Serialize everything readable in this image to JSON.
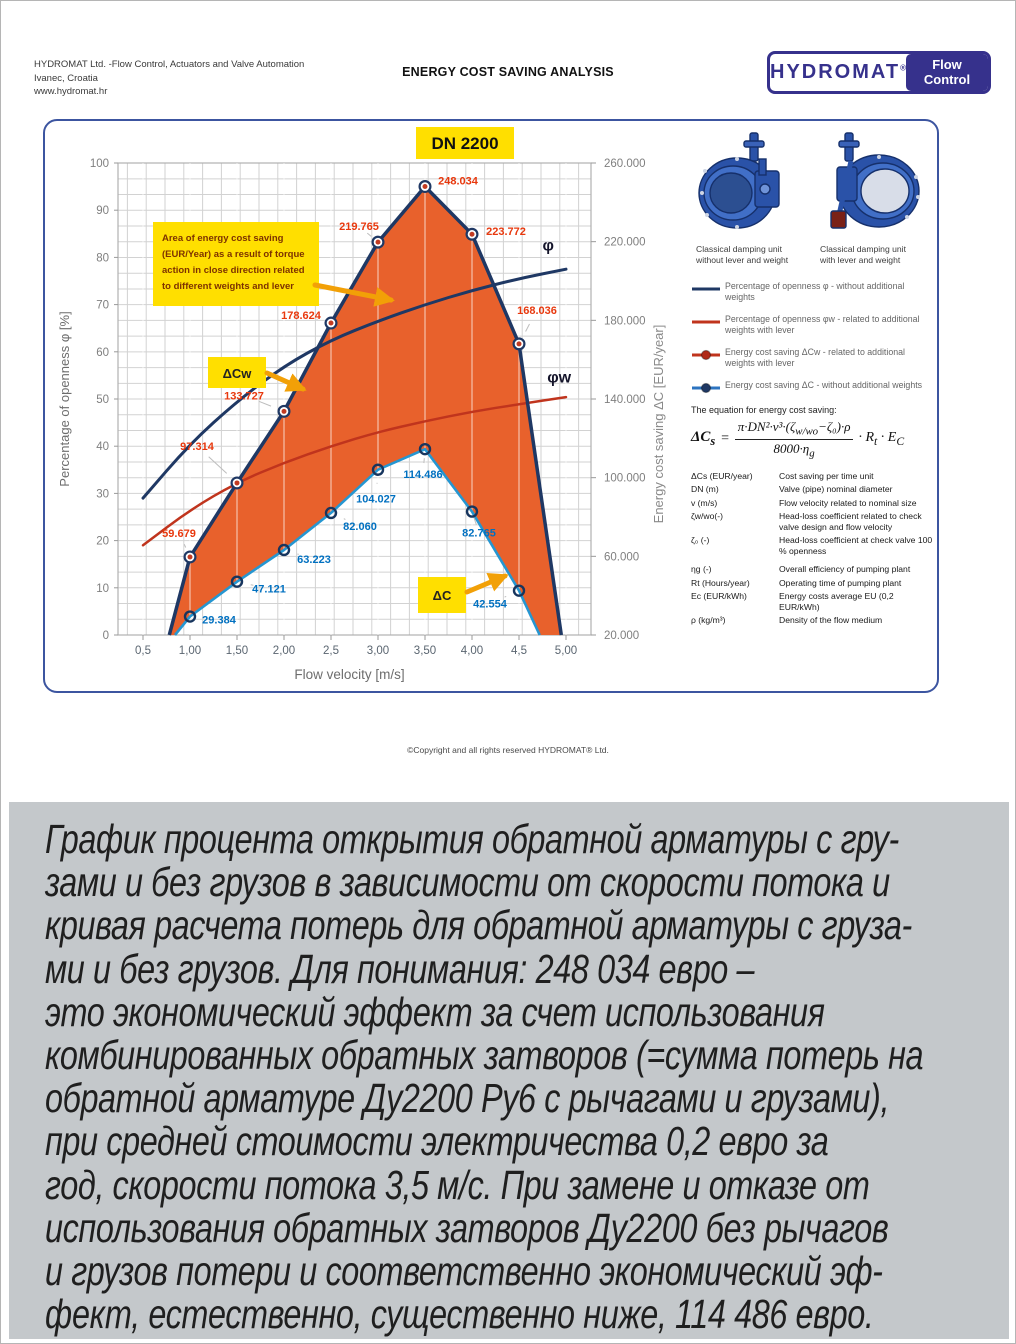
{
  "header": {
    "company_lines": [
      "HYDROMAT Ltd. -Flow Control, Actuators and Valve Automation",
      "Ivanec, Croatia",
      "www.hydromat.hr"
    ],
    "title": "ENERGY COST SAVING ANALYSIS",
    "logo": {
      "brand": "HYDROMAT",
      "registered": "®",
      "badge_line1": "Flow",
      "badge_line2": "Control"
    }
  },
  "panel": {
    "valves": [
      {
        "caption": "Classical damping unit without lever and weight"
      },
      {
        "caption": "Classical damping unit with lever and weight"
      }
    ],
    "legend": [
      {
        "label": "Percentage of openness φ - without additional weights",
        "color": "#1f3864",
        "marker": false,
        "marker_color": ""
      },
      {
        "label": "Percentage of openness φw - related to additional weights with lever",
        "color": "#c0341d",
        "marker": false,
        "marker_color": ""
      },
      {
        "label": "Energy cost saving ΔCw - related to additional weights with lever",
        "color": "#c0341d",
        "marker": true,
        "marker_color": "#b02a18"
      },
      {
        "label": "Energy cost saving ΔC - without additional weights",
        "color": "#2d74c0",
        "marker": true,
        "marker_color": "#1f3864"
      }
    ],
    "equation": {
      "intro": "The equation for energy cost saving:",
      "lhs": "ΔC",
      "lhs_sub": "s",
      "sign": "=",
      "num_a": "π·DN²·v³·(ζ",
      "num_sub": "w/wo",
      "num_b": "−ζ₀)·ρ",
      "den_a": "8000·η",
      "den_sub": "g",
      "tail_a": "· R",
      "tail_a_sub": "t",
      "tail_b": " · E",
      "tail_b_sub": "C"
    },
    "definitions": [
      {
        "term": "ΔCs (EUR/year)",
        "def": "Cost saving per time unit"
      },
      {
        "term": "DN (m)",
        "def": "Valve (pipe) nominal diameter"
      },
      {
        "term": "v (m/s)",
        "def": "Flow velocity related to nominal size"
      },
      {
        "term": "ζw/wo(-)",
        "def": "Head-loss coefficient related to check valve design and flow velocity"
      },
      {
        "term": "ζ₀ (-)",
        "def": "Head-loss coefficient at check valve 100 % openness"
      },
      {
        "term": "ηg (-)",
        "def": "Overall efficiency of pumping plant"
      },
      {
        "term": "Rt (Hours/year)",
        "def": "Operating time of pumping plant"
      },
      {
        "term": "Ec (EUR/kWh)",
        "def": "Energy costs average EU (0,2 EUR/kWh)"
      },
      {
        "term": "ρ (kg/m³)",
        "def": "Density of the flow medium"
      }
    ]
  },
  "chart_data": {
    "type": "line",
    "title": "DN 2200",
    "xlabel": "Flow velocity [m/s]",
    "ylabel_left": "Percentage of openness φ [%]",
    "ylabel_right": "Energy cost saving ΔC [EUR/year]",
    "x_ticks": [
      {
        "v": 0.5,
        "label": "0,5"
      },
      {
        "v": 1,
        "label": "1,00"
      },
      {
        "v": 1.5,
        "label": "1,50"
      },
      {
        "v": 2,
        "label": "2,00"
      },
      {
        "v": 2.5,
        "label": "2,5"
      },
      {
        "v": 3,
        "label": "3,00"
      },
      {
        "v": 3.5,
        "label": "3,50"
      },
      {
        "v": 4,
        "label": "4,00"
      },
      {
        "v": 4.5,
        "label": "4,5"
      },
      {
        "v": 5,
        "label": "5,00"
      }
    ],
    "y_left": {
      "min": 0,
      "max": 100,
      "tick_step": 10
    },
    "y_right": {
      "min": 20000,
      "max": 260000,
      "ticks": [
        {
          "v": 260000,
          "label": "260.000"
        },
        {
          "v": 220000,
          "label": "220.000"
        },
        {
          "v": 180000,
          "label": "180.000"
        },
        {
          "v": 140000,
          "label": "140.000"
        },
        {
          "v": 100000,
          "label": "100.000"
        },
        {
          "v": 60000,
          "label": "60.000"
        },
        {
          "v": 20000,
          "label": "20.000"
        }
      ]
    },
    "series": [
      {
        "name": "phi",
        "curve_label": "φ",
        "type": "smooth",
        "axis": "left",
        "color": "#1f3864",
        "width": 3,
        "points": [
          [
            0.5,
            29
          ],
          [
            1,
            40.5
          ],
          [
            1.5,
            49.5
          ],
          [
            2,
            57
          ],
          [
            2.5,
            62.5
          ],
          [
            3,
            66.5
          ],
          [
            3.5,
            70
          ],
          [
            4,
            73
          ],
          [
            4.5,
            75.5
          ],
          [
            5,
            77.5
          ]
        ],
        "curve_label_pos": [
          4.75,
          81.5
        ]
      },
      {
        "name": "phiw",
        "curve_label": "φw",
        "type": "smooth",
        "axis": "left",
        "color": "#c0341d",
        "width": 2.5,
        "points": [
          [
            0.5,
            19
          ],
          [
            1,
            26.5
          ],
          [
            1.5,
            32.3
          ],
          [
            2,
            36.5
          ],
          [
            2.5,
            40
          ],
          [
            3,
            43
          ],
          [
            3.5,
            45.3
          ],
          [
            4,
            47.3
          ],
          [
            4.5,
            48.9
          ],
          [
            5,
            50.4
          ]
        ],
        "curve_label_pos": [
          4.8,
          53.5
        ]
      },
      {
        "name": "dCw",
        "type": "marker",
        "axis": "right",
        "color": "#1f3864",
        "width": 3.5,
        "points": [
          [
            1,
            59679
          ],
          [
            1.5,
            97314
          ],
          [
            2,
            133727
          ],
          [
            2.5,
            178624
          ],
          [
            3,
            219765
          ],
          [
            3.5,
            248034
          ],
          [
            4,
            223772
          ],
          [
            4.5,
            168036
          ]
        ],
        "point_labels": [
          "59.679",
          "97.314",
          "133.727",
          "178.624",
          "219.765",
          "248.034",
          "223.772",
          "168.036"
        ],
        "label_color": "#e8380d",
        "marker_inner": "#c23b22",
        "label_offsets": [
          [
            -11,
            -24
          ],
          [
            -40,
            -37
          ],
          [
            -40,
            -16
          ],
          [
            -30,
            -8
          ],
          [
            -19,
            -16
          ],
          [
            33,
            -6
          ],
          [
            34,
            -3
          ],
          [
            18,
            -34
          ]
        ],
        "extend_to_baseline": [
          0.78,
          4.95
        ]
      },
      {
        "name": "dC",
        "type": "marker",
        "axis": "right",
        "color": "#2596d1",
        "width": 2.6,
        "points": [
          [
            1,
            29384
          ],
          [
            1.5,
            47121
          ],
          [
            2,
            63223
          ],
          [
            2.5,
            82060
          ],
          [
            3,
            104027
          ],
          [
            3.5,
            114486
          ],
          [
            4,
            82765
          ],
          [
            4.5,
            42554
          ]
        ],
        "point_labels": [
          "29.384",
          "47.121",
          "63.223",
          "82.060",
          "104.027",
          "114.486",
          "82.765",
          "42.554"
        ],
        "label_color": "#0070c0",
        "marker_inner": "none",
        "label_offsets": [
          [
            29,
            3
          ],
          [
            32,
            7
          ],
          [
            30,
            9
          ],
          [
            29,
            13
          ],
          [
            -2,
            29
          ],
          [
            -2,
            25
          ],
          [
            7,
            21
          ],
          [
            -29,
            13
          ]
        ],
        "extend_to_baseline": [
          0.84,
          4.72
        ]
      }
    ],
    "fill": {
      "between": [
        "dCw",
        "dC"
      ],
      "color": "#e8612c"
    },
    "annotations": {
      "area_note": {
        "lines": [
          "Area of energy cost saving",
          "(EUR/Year) as a result of torque",
          "action in close direction related",
          "to different weights and lever"
        ]
      },
      "dcw_label": "ΔCw",
      "dc_label": "ΔC"
    }
  },
  "footer": {
    "copyright": "©Copyright and all rights reserved HYDROMAT® Ltd."
  },
  "description_ru": {
    "lines": [
      "График процента открытия обратной арматуры с гру-",
      "зами и без грузов в зависимости от скорости потока и",
      "кривая расчета потерь для обратной арматуры с груза-",
      "ми и без грузов. Для понимания: 248 034 евро –",
      "это экономический эффект за счет использования",
      "комбинированных обратных затворов (=сумма потерь на",
      "обратной арматуре Ду2200 Ру6 с рычагами и грузами),",
      "при средней стоимости электричества 0,2 евро за",
      "год, скорости потока 3,5 м/с. При замене и отказе от",
      "использования обратных затворов Ду2200 без рычагов",
      "и грузов потери и соответственно экономический эф-",
      "фект, естественно, существенно ниже, 114 486 евро."
    ]
  }
}
